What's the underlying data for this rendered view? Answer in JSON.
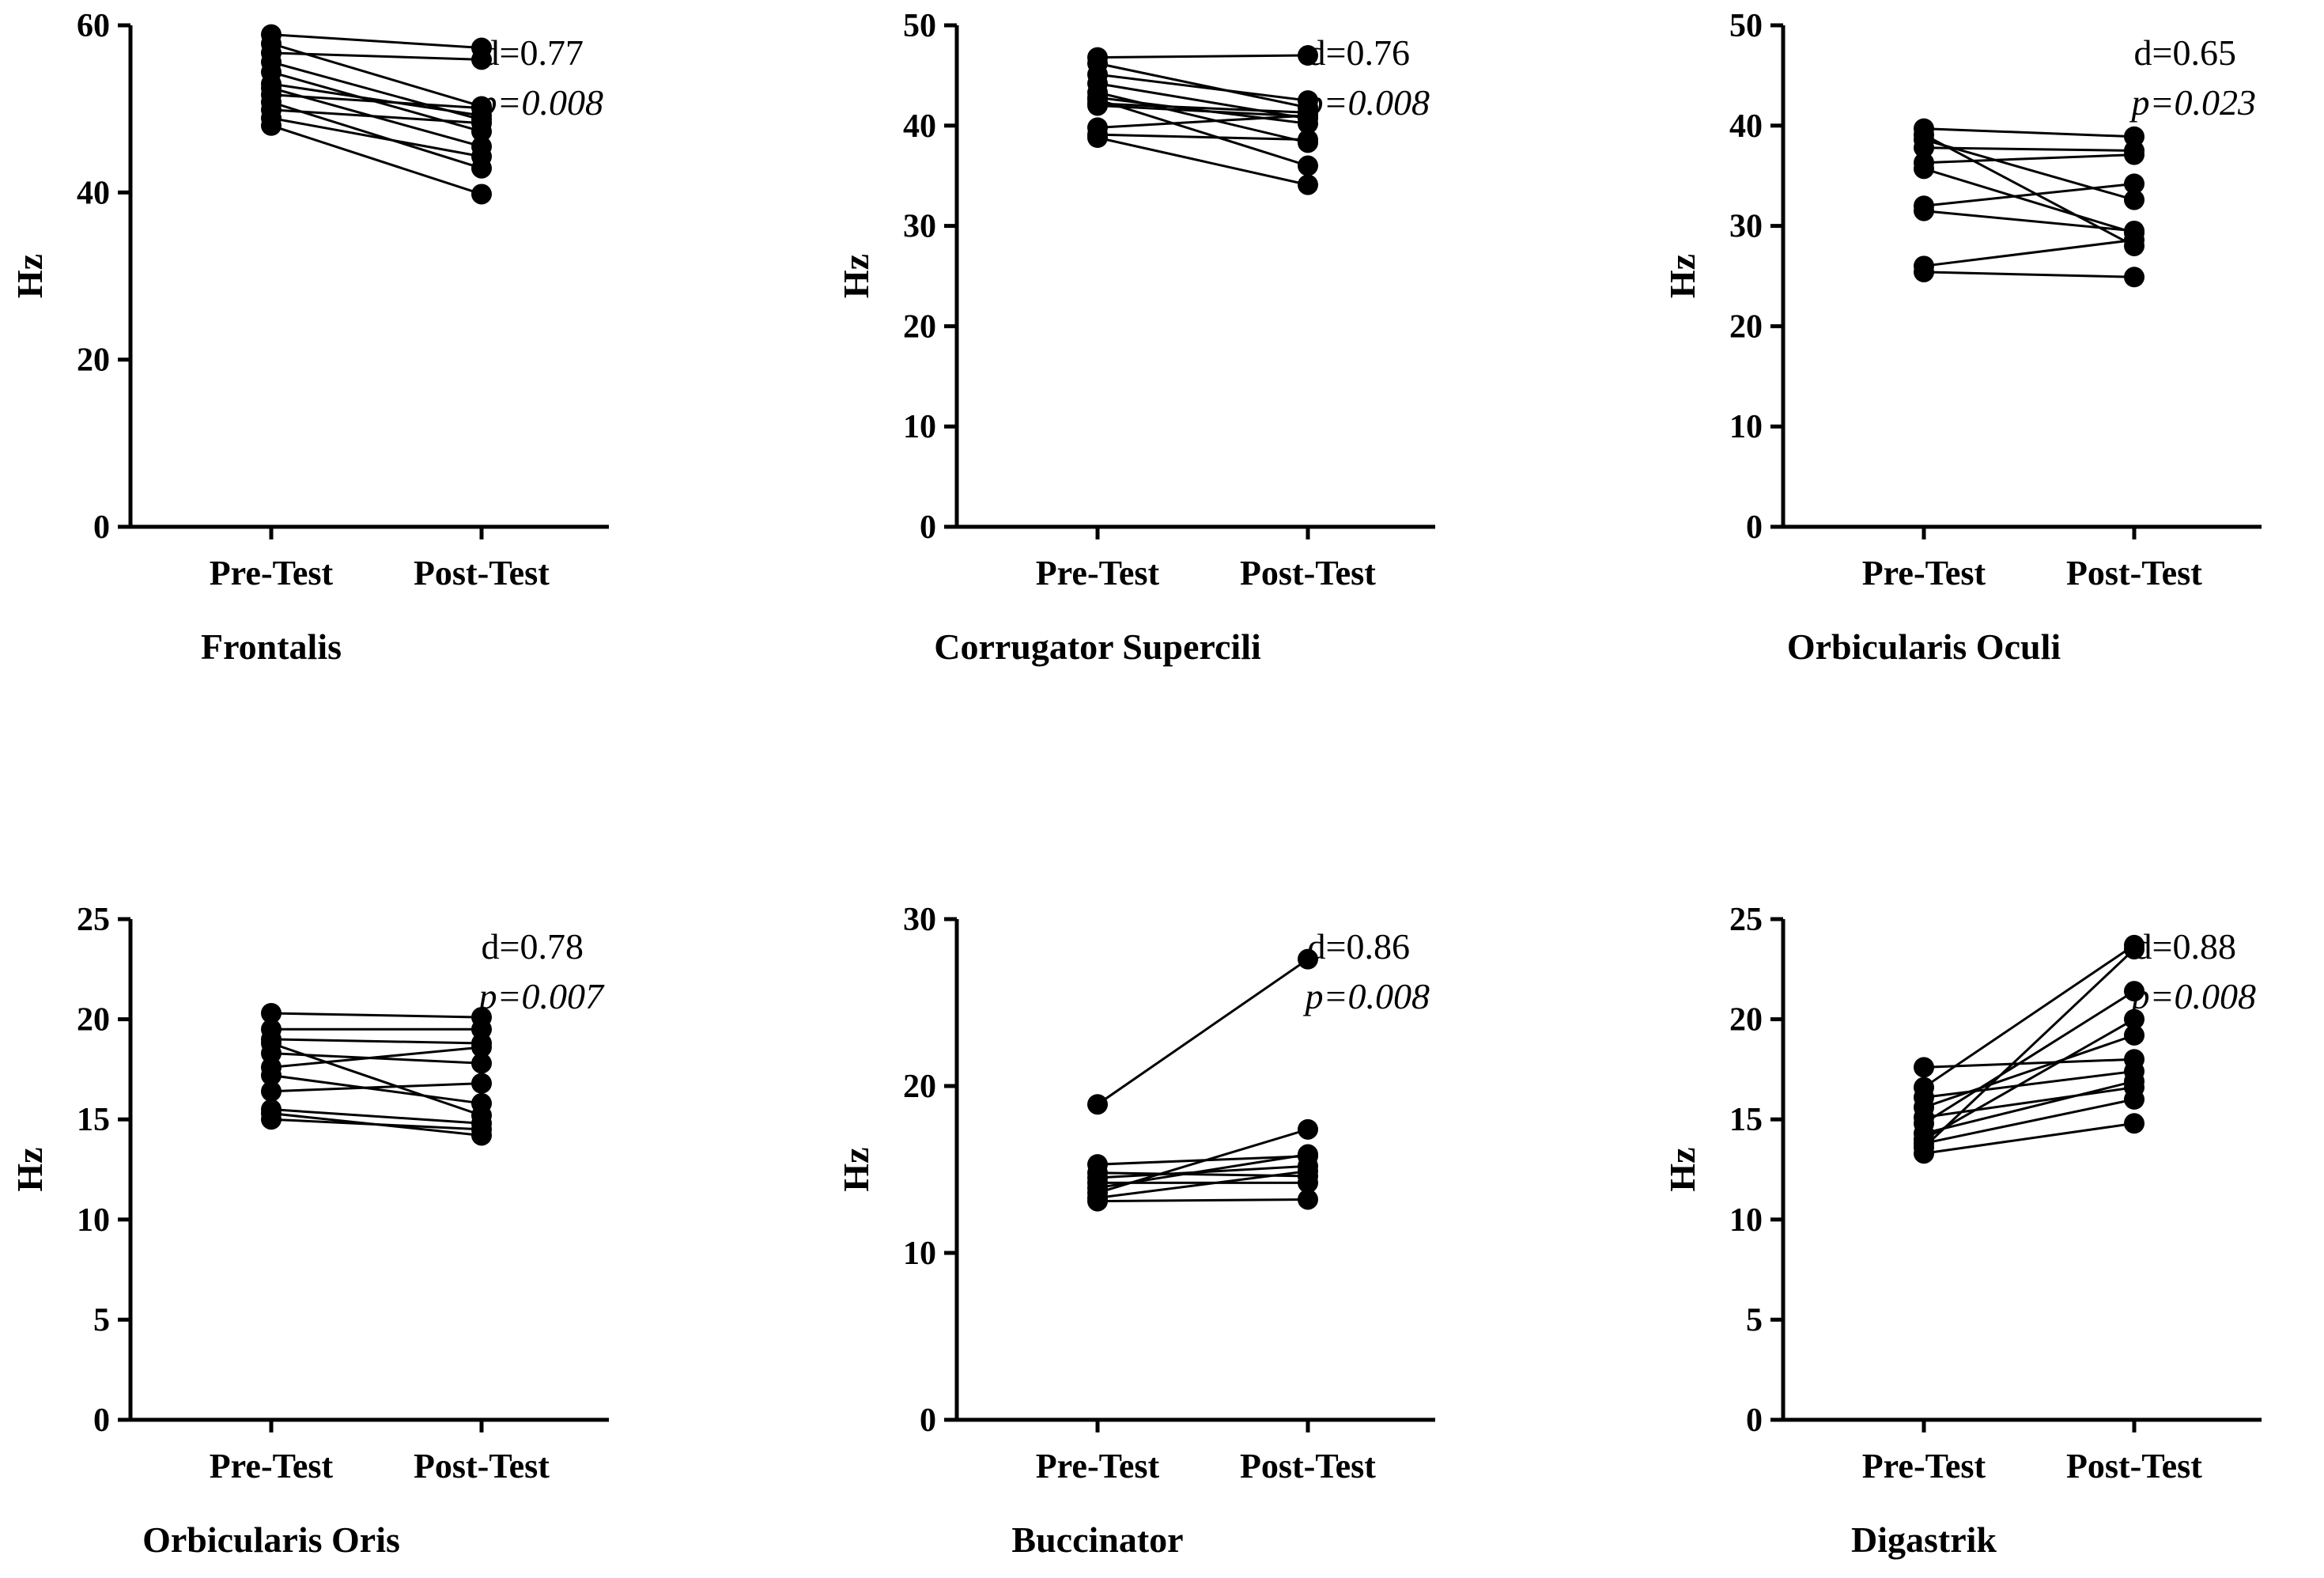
{
  "chart_data": [
    {
      "type": "line",
      "title": "Frontalis",
      "ylabel": "Hz",
      "categories": [
        "Pre-Test",
        "Post-Test"
      ],
      "ylim": [
        0,
        60
      ],
      "yticks": [
        0,
        20,
        40,
        60
      ],
      "annotation": {
        "d": "d=0.77",
        "p": "p=0.008"
      },
      "pairs": [
        [
          58.9,
          57.3
        ],
        [
          57.8,
          50.3
        ],
        [
          56.7,
          55.9
        ],
        [
          55.6,
          48.7
        ],
        [
          54.4,
          47.3
        ],
        [
          53.0,
          49.2
        ],
        [
          52.5,
          45.5
        ],
        [
          51.7,
          50.1
        ],
        [
          50.8,
          42.9
        ],
        [
          49.9,
          48.3
        ],
        [
          48.9,
          44.3
        ],
        [
          48.0,
          39.8
        ]
      ]
    },
    {
      "type": "line",
      "title": "Corrugator Supercili",
      "ylabel": "Hz",
      "categories": [
        "Pre-Test",
        "Post-Test"
      ],
      "ylim": [
        0,
        50
      ],
      "yticks": [
        0,
        10,
        20,
        30,
        40,
        50
      ],
      "annotation": {
        "d": "d=0.76",
        "p": "p=0.008"
      },
      "pairs": [
        [
          46.8,
          47.0
        ],
        [
          46.2,
          41.8
        ],
        [
          45.1,
          42.5
        ],
        [
          44.2,
          40.7
        ],
        [
          43.3,
          38.3
        ],
        [
          42.8,
          40.2
        ],
        [
          42.6,
          36.0
        ],
        [
          42.2,
          41.3
        ],
        [
          42.0,
          40.9
        ],
        [
          39.8,
          41.0
        ],
        [
          39.1,
          38.6
        ],
        [
          38.8,
          34.1
        ]
      ]
    },
    {
      "type": "line",
      "title": "Orbicularis Oculi",
      "ylabel": "Hz",
      "categories": [
        "Pre-Test",
        "Post-Test"
      ],
      "ylim": [
        0,
        50
      ],
      "yticks": [
        0,
        10,
        20,
        30,
        40,
        50
      ],
      "annotation": {
        "d": "d=0.65",
        "p": "p=0.023"
      },
      "pairs": [
        [
          39.7,
          38.9
        ],
        [
          39.1,
          28.0
        ],
        [
          38.6,
          32.6
        ],
        [
          37.8,
          37.5
        ],
        [
          36.3,
          37.1
        ],
        [
          35.7,
          29.3
        ],
        [
          32.0,
          34.2
        ],
        [
          31.5,
          29.5
        ],
        [
          26.0,
          28.6
        ],
        [
          25.4,
          24.9
        ]
      ]
    },
    {
      "type": "line",
      "title": "Orbicularis Oris",
      "ylabel": "Hz",
      "categories": [
        "Pre-Test",
        "Post-Test"
      ],
      "ylim": [
        0,
        25
      ],
      "yticks": [
        0,
        5,
        10,
        15,
        20,
        25
      ],
      "annotation": {
        "d": "d=0.78",
        "p": "p=0.007"
      },
      "pairs": [
        [
          20.3,
          20.1
        ],
        [
          19.5,
          19.5
        ],
        [
          19.0,
          18.8
        ],
        [
          18.8,
          15.2
        ],
        [
          18.3,
          17.8
        ],
        [
          17.6,
          18.6
        ],
        [
          17.2,
          15.8
        ],
        [
          16.4,
          16.8
        ],
        [
          15.5,
          14.8
        ],
        [
          15.3,
          14.2
        ],
        [
          15.0,
          14.5
        ]
      ]
    },
    {
      "type": "line",
      "title": "Buccinator",
      "ylabel": "Hz",
      "categories": [
        "Pre-Test",
        "Post-Test"
      ],
      "ylim": [
        0,
        30
      ],
      "yticks": [
        0,
        10,
        20,
        30
      ],
      "annotation": {
        "d": "d=0.86",
        "p": "p=0.008"
      },
      "pairs": [
        [
          18.9,
          27.6
        ],
        [
          15.3,
          15.8
        ],
        [
          14.8,
          14.6
        ],
        [
          14.5,
          15.2
        ],
        [
          14.2,
          14.2
        ],
        [
          13.9,
          15.9
        ],
        [
          13.6,
          17.4
        ],
        [
          13.3,
          14.9
        ],
        [
          13.1,
          13.2
        ]
      ]
    },
    {
      "type": "line",
      "title": "Digastrik",
      "ylabel": "Hz",
      "categories": [
        "Pre-Test",
        "Post-Test"
      ],
      "ylim": [
        0,
        25
      ],
      "yticks": [
        0,
        5,
        10,
        15,
        20,
        25
      ],
      "annotation": {
        "d": "d=0.88",
        "p": "p=0.008"
      },
      "pairs": [
        [
          17.6,
          18.0
        ],
        [
          16.6,
          23.7
        ],
        [
          16.1,
          17.4
        ],
        [
          15.6,
          19.2
        ],
        [
          15.1,
          16.6
        ],
        [
          14.8,
          21.4
        ],
        [
          14.3,
          16.9
        ],
        [
          14.0,
          20.0
        ],
        [
          13.8,
          16.0
        ],
        [
          13.6,
          23.5
        ],
        [
          13.3,
          14.8
        ]
      ]
    }
  ]
}
